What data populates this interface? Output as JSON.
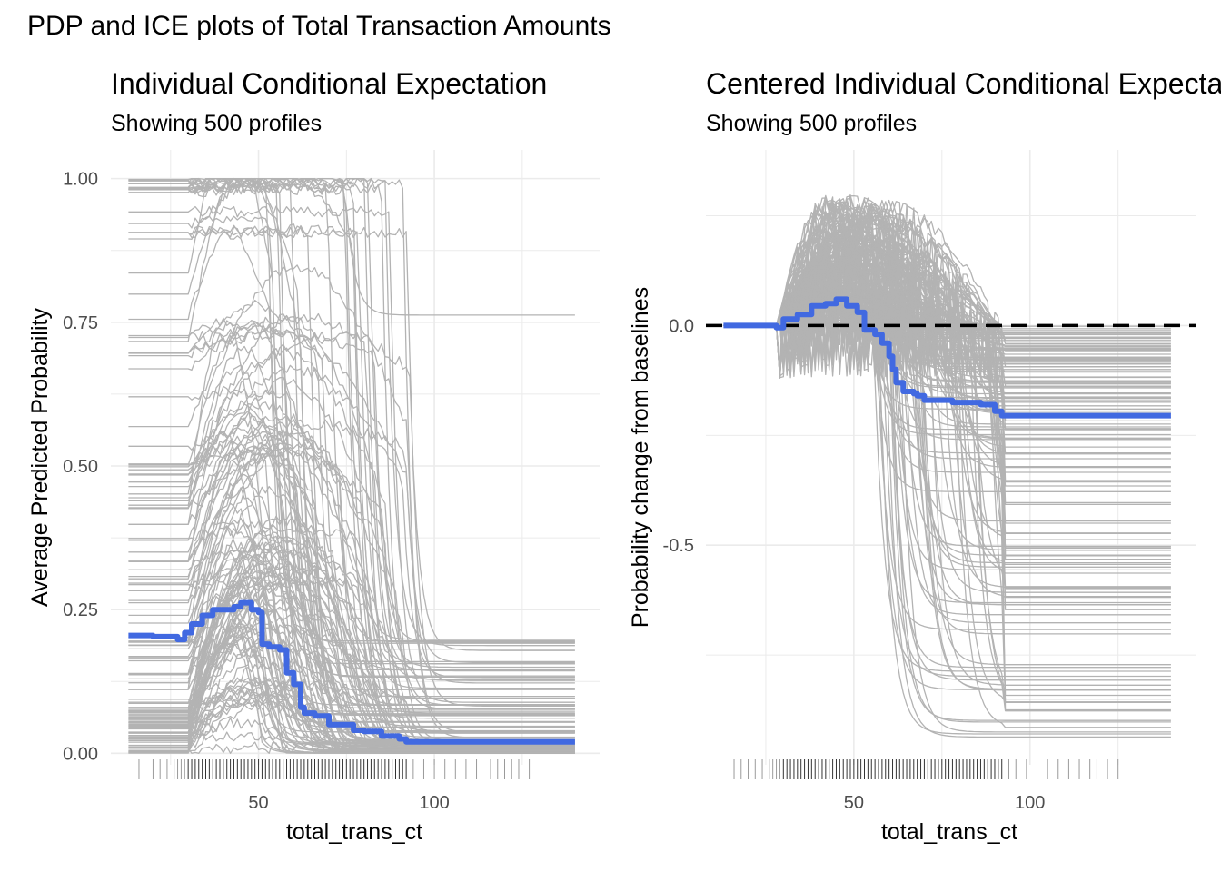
{
  "title": "PDP and ICE plots of Total Transaction Amounts",
  "colors": {
    "ice": "#b3b3b3",
    "pdp": "#4169e1",
    "grid": "#ebebeb",
    "rug": "#333333",
    "baseline": "#000000"
  },
  "chart_data": [
    {
      "type": "line",
      "title": "Individual Conditional Expectation",
      "subtitle": "Showing 500 profiles",
      "xlabel": "total_trans_ct",
      "ylabel": "Average Predicted Probability",
      "xlim": [
        8,
        147
      ],
      "ylim": [
        -0.02,
        1.05
      ],
      "x_ticks": [
        50,
        100
      ],
      "y_ticks": [
        0.0,
        0.25,
        0.5,
        0.75,
        1.0
      ],
      "y_tick_labels": [
        "0.00",
        "0.25",
        "0.50",
        "0.75",
        "1.00"
      ],
      "grid": true,
      "n_profiles": 500,
      "pdp": {
        "x": [
          13,
          20,
          27,
          29,
          31,
          34,
          37,
          40,
          43,
          45,
          48,
          50,
          51,
          53,
          56,
          58,
          60,
          62,
          63,
          64,
          66,
          70,
          72,
          77,
          80,
          85,
          90,
          92,
          100,
          120,
          140
        ],
        "y": [
          0.205,
          0.203,
          0.198,
          0.21,
          0.225,
          0.24,
          0.25,
          0.25,
          0.255,
          0.262,
          0.25,
          0.245,
          0.19,
          0.185,
          0.18,
          0.14,
          0.12,
          0.08,
          0.07,
          0.07,
          0.065,
          0.05,
          0.05,
          0.04,
          0.038,
          0.03,
          0.025,
          0.02,
          0.02,
          0.02,
          0.02
        ]
      },
      "rug": [
        16,
        20,
        22,
        24,
        26,
        27,
        28,
        29,
        30,
        31,
        32,
        33,
        34,
        35,
        36,
        37,
        38,
        39,
        40,
        41,
        42,
        43,
        44,
        45,
        46,
        47,
        48,
        49,
        50,
        51,
        52,
        53,
        54,
        55,
        56,
        57,
        58,
        59,
        60,
        61,
        62,
        63,
        64,
        65,
        66,
        67,
        68,
        69,
        70,
        71,
        72,
        73,
        74,
        75,
        76,
        77,
        78,
        79,
        80,
        81,
        82,
        83,
        84,
        85,
        86,
        87,
        88,
        89,
        90,
        91,
        92,
        94,
        97,
        100,
        103,
        106,
        109,
        112,
        116,
        118,
        120,
        122,
        124,
        127
      ]
    },
    {
      "type": "line",
      "title": "Centered Individual Conditional Expectation",
      "subtitle": "Showing 500 profiles",
      "xlabel": "total_trans_ct",
      "ylabel": "Probability change from baselines",
      "xlim": [
        8,
        147
      ],
      "ylim": [
        -1.0,
        0.4
      ],
      "x_ticks": [
        50,
        100
      ],
      "y_ticks": [
        0.0,
        -0.5
      ],
      "y_tick_labels": [
        "0.0",
        "-0.5"
      ],
      "grid": true,
      "n_profiles": 500,
      "baseline_y": 0.0,
      "pdp": {
        "x": [
          13,
          22,
          28,
          30,
          34,
          38,
          42,
          45,
          48,
          51,
          53,
          56,
          58,
          60,
          61,
          62,
          64,
          67,
          68,
          70,
          78,
          86,
          90,
          92,
          100,
          120,
          140
        ],
        "y": [
          0.0,
          0.0,
          -0.005,
          0.015,
          0.025,
          0.045,
          0.05,
          0.06,
          0.045,
          0.03,
          -0.01,
          -0.02,
          -0.04,
          -0.07,
          -0.1,
          -0.13,
          -0.15,
          -0.155,
          -0.16,
          -0.17,
          -0.175,
          -0.18,
          -0.195,
          -0.205,
          -0.205,
          -0.205,
          -0.205
        ]
      },
      "rug": [
        16,
        18,
        20,
        22,
        24,
        26,
        27,
        28,
        29,
        30,
        31,
        32,
        33,
        34,
        35,
        36,
        37,
        38,
        39,
        40,
        41,
        42,
        43,
        44,
        45,
        46,
        47,
        48,
        49,
        50,
        51,
        52,
        53,
        54,
        55,
        56,
        57,
        58,
        59,
        60,
        61,
        62,
        63,
        64,
        65,
        66,
        67,
        68,
        69,
        70,
        71,
        72,
        73,
        74,
        75,
        76,
        77,
        78,
        79,
        80,
        81,
        82,
        83,
        84,
        85,
        86,
        87,
        88,
        89,
        90,
        91,
        92,
        94,
        96,
        99,
        102,
        105,
        108,
        111,
        114,
        117,
        119,
        122,
        125
      ]
    }
  ]
}
